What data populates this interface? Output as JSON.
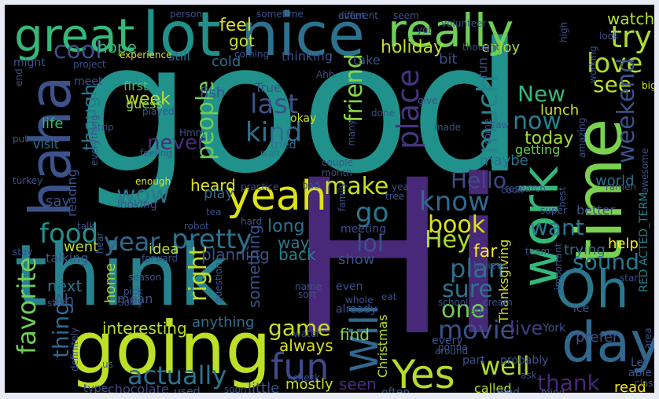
{
  "words": [
    {
      "text": "good",
      "color": "#21918c"
    },
    {
      "text": "Hi",
      "color": "#482878"
    },
    {
      "text": "think",
      "color": "#26828e"
    },
    {
      "text": "going",
      "color": "#bddf26"
    },
    {
      "text": "nice",
      "color": "#2c728e"
    },
    {
      "text": "lot",
      "color": "#21918c"
    },
    {
      "text": "great",
      "color": "#35b779"
    },
    {
      "text": "really",
      "color": "#6ece58"
    },
    {
      "text": "haha",
      "color": "#3b528b"
    },
    {
      "text": "work",
      "color": "#35b779"
    },
    {
      "text": "time",
      "color": "#7ad151"
    },
    {
      "text": "Oh",
      "color": "#2a788e"
    },
    {
      "text": "day",
      "color": "#31688e"
    },
    {
      "text": "yeah",
      "color": "#dde318"
    },
    {
      "text": "fun",
      "color": "#3e4a89"
    },
    {
      "text": "Yes",
      "color": "#b5de2b"
    },
    {
      "text": "try",
      "color": "#addc30"
    },
    {
      "text": "love",
      "color": "#addc30"
    },
    {
      "text": "watch",
      "color": "#b5de2b"
    },
    {
      "text": "cool",
      "color": "#3b528b"
    },
    {
      "text": "hope",
      "color": "#35b779"
    },
    {
      "text": "feel",
      "color": "#dde318"
    },
    {
      "text": "got",
      "color": "#c8e020"
    },
    {
      "text": "holiday",
      "color": "#c2df23"
    },
    {
      "text": "enjoy",
      "color": "#a8db34"
    },
    {
      "text": "see",
      "color": "#bddf26"
    },
    {
      "text": "New",
      "color": "#35b779"
    },
    {
      "text": "now",
      "color": "#26828e"
    },
    {
      "text": "weekend",
      "color": "#3b528b"
    },
    {
      "text": "today",
      "color": "#a0da39"
    },
    {
      "text": "lunch",
      "color": "#d0e11c"
    },
    {
      "text": "getting",
      "color": "#6ece58"
    },
    {
      "text": "last",
      "color": "#3b528b"
    },
    {
      "text": "kind",
      "color": "#2c728e"
    },
    {
      "text": "friend",
      "color": "#86d549"
    },
    {
      "text": "place",
      "color": "#46337e"
    },
    {
      "text": "much",
      "color": "#26828e"
    },
    {
      "text": "people",
      "color": "#6ece58"
    },
    {
      "text": "though",
      "color": "#2a788e"
    },
    {
      "text": "never",
      "color": "#472d7b"
    },
    {
      "text": "week",
      "color": "#bddf26"
    },
    {
      "text": "first",
      "color": "#46c06f"
    },
    {
      "text": "guess",
      "color": "#8fd744"
    },
    {
      "text": "wow",
      "color": "#2a788e"
    },
    {
      "text": "make",
      "color": "#c8e020"
    },
    {
      "text": "go",
      "color": "#2a788e"
    },
    {
      "text": "Hello",
      "color": "#3e4a89"
    },
    {
      "text": "know",
      "color": "#31688e"
    },
    {
      "text": "maybe",
      "color": "#2c728e"
    },
    {
      "text": "book",
      "color": "#dde318"
    },
    {
      "text": "want",
      "color": "#2a788e"
    },
    {
      "text": "better",
      "color": "#3b528b"
    },
    {
      "text": "lol",
      "color": "#3b528b"
    },
    {
      "text": "Hey",
      "color": "#addc30"
    },
    {
      "text": "plan",
      "color": "#2c728e"
    },
    {
      "text": "sure",
      "color": "#2c728e"
    },
    {
      "text": "sound",
      "color": "#2a788e"
    },
    {
      "text": "food",
      "color": "#21918c"
    },
    {
      "text": "year",
      "color": "#31688e"
    },
    {
      "text": "pretty",
      "color": "#2c728e"
    },
    {
      "text": "favorite",
      "color": "#6ece58"
    },
    {
      "text": "thing",
      "color": "#31688e"
    },
    {
      "text": "right",
      "color": "#c2df23"
    },
    {
      "text": "one",
      "color": "#6ece58"
    },
    {
      "text": "movie",
      "color": "#3b528b"
    },
    {
      "text": "Will",
      "color": "#31688e"
    },
    {
      "text": "game",
      "color": "#c8e020"
    },
    {
      "text": "well",
      "color": "#addc30"
    },
    {
      "text": "thank",
      "color": "#482878"
    },
    {
      "text": "live",
      "color": "#433e85"
    },
    {
      "text": "actually",
      "color": "#2c728e"
    },
    {
      "text": "interesting",
      "color": "#b5de2b"
    },
    {
      "text": "chocolate",
      "color": "#3e4a89"
    },
    {
      "text": "little",
      "color": "#3b528b"
    },
    {
      "text": "seen",
      "color": "#472d7b"
    },
    {
      "text": "called",
      "color": "#b5de2b"
    },
    {
      "text": "mostly",
      "color": "#c8e020"
    },
    {
      "text": "always",
      "color": "#dde318"
    },
    {
      "text": "find",
      "color": "#86d549"
    },
    {
      "text": "something",
      "color": "#3b528b"
    },
    {
      "text": "Christmas",
      "color": "#b5de2b"
    },
    {
      "text": "Thanksgiving",
      "color": "#d0e11c"
    },
    {
      "text": "RED ACTED_TERM",
      "color": "#26828e"
    },
    {
      "text": "read",
      "color": "#fde725"
    },
    {
      "text": "prefer",
      "color": "#3b528b"
    },
    {
      "text": "help",
      "color": "#fde725"
    },
    {
      "text": "trying",
      "color": "#2c728e"
    },
    {
      "text": "world",
      "color": "#2c728e"
    },
    {
      "text": "heard",
      "color": "#dde318"
    },
    {
      "text": "play",
      "color": "#31688e"
    },
    {
      "text": "long",
      "color": "#2c728e"
    },
    {
      "text": "way",
      "color": "#2a788e"
    },
    {
      "text": "back",
      "color": "#26828e"
    },
    {
      "text": "planning",
      "color": "#3b528b"
    },
    {
      "text": "idea",
      "color": "#bddf26"
    },
    {
      "text": "show",
      "color": "#3b528b"
    },
    {
      "text": "far",
      "color": "#fde725"
    },
    {
      "text": "next",
      "color": "#2c728e"
    },
    {
      "text": "Ah",
      "color": "#3b528b"
    },
    {
      "text": "home",
      "color": "#a0da39"
    },
    {
      "text": "mean",
      "color": "#3b528b"
    },
    {
      "text": "anything",
      "color": "#2c728e"
    },
    {
      "text": "say",
      "color": "#3b528b"
    },
    {
      "text": "reading",
      "color": "#3b528b"
    },
    {
      "text": "went",
      "color": "#bddf26"
    },
    {
      "text": "talking",
      "color": "#3b528b"
    },
    {
      "text": "life",
      "color": "#35b779"
    },
    {
      "text": "visit",
      "color": "#2c728e"
    },
    {
      "text": "fish",
      "color": "#3b528b"
    },
    {
      "text": "cold",
      "color": "#2c728e"
    },
    {
      "text": "still",
      "color": "#2c728e"
    },
    {
      "text": "True",
      "color": "#3b528b"
    },
    {
      "text": "okay",
      "color": "#c8e020"
    },
    {
      "text": "tried",
      "color": "#2c728e"
    },
    {
      "text": "wait",
      "color": "#2c728e"
    },
    {
      "text": "thinking",
      "color": "#3b528b"
    },
    {
      "text": "take",
      "color": "#3b528b"
    },
    {
      "text": "bit",
      "color": "#3b528b"
    },
    {
      "text": "run",
      "color": "#3b528b"
    },
    {
      "text": "meet",
      "color": "#3b528b"
    },
    {
      "text": "might",
      "color": "#3b528b"
    },
    {
      "text": "project",
      "color": "#3b528b"
    },
    {
      "text": "experience",
      "color": "#dde318"
    },
    {
      "text": "person",
      "color": "#3b528b"
    },
    {
      "text": "sometime",
      "color": "#3b528b"
    },
    {
      "text": "event",
      "color": "#3b528b"
    },
    {
      "text": "different",
      "color": "#3b528b"
    },
    {
      "text": "seem",
      "color": "#3b528b"
    },
    {
      "text": "volunteer",
      "color": "#3b528b"
    },
    {
      "text": "awesome",
      "color": "#3b528b"
    },
    {
      "text": "working",
      "color": "#3b528b"
    },
    {
      "text": "thought",
      "color": "#3b528b"
    },
    {
      "text": "look",
      "color": "#3b528b"
    },
    {
      "text": "high",
      "color": "#3b528b"
    },
    {
      "text": "coming",
      "color": "#3b528b"
    },
    {
      "text": "Ahh",
      "color": "#3b528b"
    },
    {
      "text": "yet",
      "color": "#3b528b"
    },
    {
      "text": "big",
      "color": "#dde318"
    },
    {
      "text": "end",
      "color": "#3b528b"
    },
    {
      "text": "put",
      "color": "#3b528b"
    },
    {
      "text": "turkey",
      "color": "#3b528b"
    },
    {
      "text": "stay",
      "color": "#3b528b"
    },
    {
      "text": "everything",
      "color": "#3b528b"
    },
    {
      "text": "feeling",
      "color": "#3b528b"
    },
    {
      "text": "enough",
      "color": "#dde318"
    },
    {
      "text": "practice",
      "color": "#3b528b"
    },
    {
      "text": "month",
      "color": "#3b528b"
    },
    {
      "text": "couple",
      "color": "#3b528b"
    },
    {
      "text": "bad",
      "color": "#3b528b"
    },
    {
      "text": "tea",
      "color": "#3b528b"
    },
    {
      "text": "hard",
      "color": "#3b528b"
    },
    {
      "text": "robot",
      "color": "#3b528b"
    },
    {
      "text": "talk",
      "color": "#3b528b"
    },
    {
      "text": "looking",
      "color": "#3b528b"
    },
    {
      "text": "tree",
      "color": "#3b528b"
    },
    {
      "text": "cook",
      "color": "#3b528b"
    },
    {
      "text": "research",
      "color": "#3b528b"
    },
    {
      "text": "ramen",
      "color": "#3b528b"
    },
    {
      "text": "super",
      "color": "#3b528b"
    },
    {
      "text": "best",
      "color": "#3b528b"
    },
    {
      "text": "meeting",
      "color": "#3b528b"
    },
    {
      "text": "family",
      "color": "#3b528b"
    },
    {
      "text": "yea",
      "color": "#3b528b"
    },
    {
      "text": "done",
      "color": "#3b528b"
    },
    {
      "text": "made",
      "color": "#3b528b"
    },
    {
      "text": "around",
      "color": "#3b528b"
    },
    {
      "text": "many",
      "color": "#3b528b"
    },
    {
      "text": "check",
      "color": "#3b528b"
    },
    {
      "text": "played",
      "color": "#3b528b"
    },
    {
      "text": "trip",
      "color": "#3b528b"
    },
    {
      "text": "give",
      "color": "#3b528b"
    },
    {
      "text": "saw",
      "color": "#3b528b"
    },
    {
      "text": "come",
      "color": "#3b528b"
    },
    {
      "text": "Hmm",
      "color": "#3b528b"
    },
    {
      "text": "forward",
      "color": "#3b528b"
    },
    {
      "text": "hear",
      "color": "#3b528b"
    },
    {
      "text": "pick",
      "color": "#3b528b"
    },
    {
      "text": "Sorry",
      "color": "#3b528b"
    },
    {
      "text": "stuff",
      "color": "#3b528b"
    },
    {
      "text": "season",
      "color": "#3b528b"
    },
    {
      "text": "question",
      "color": "#3b528b"
    },
    {
      "text": "name",
      "color": "#3b528b"
    },
    {
      "text": "sort",
      "color": "#3b528b"
    },
    {
      "text": "even",
      "color": "#3b528b"
    },
    {
      "text": "whole",
      "color": "#3b528b"
    },
    {
      "text": "believe",
      "color": "#3b528b"
    },
    {
      "text": "eat",
      "color": "#3b528b"
    },
    {
      "text": "school",
      "color": "#3b528b"
    },
    {
      "text": "cream",
      "color": "#3b528b"
    },
    {
      "text": "ago",
      "color": "#3b528b"
    },
    {
      "text": "ice",
      "color": "#3b528b"
    },
    {
      "text": "start",
      "color": "#3b528b"
    },
    {
      "text": "important",
      "color": "#3b528b"
    },
    {
      "text": "amazing",
      "color": "#3b528b"
    },
    {
      "text": "water",
      "color": "#3b528b"
    },
    {
      "text": "York",
      "color": "#3b528b"
    },
    {
      "text": "ask",
      "color": "#3b528b"
    },
    {
      "text": "mind",
      "color": "#3b528b"
    },
    {
      "text": "need",
      "color": "#3b528b"
    },
    {
      "text": "often",
      "color": "#3b528b"
    },
    {
      "text": "part",
      "color": "#3b528b"
    },
    {
      "text": "probably",
      "color": "#3b528b"
    },
    {
      "text": "every",
      "color": "#3b528b"
    },
    {
      "text": "gonna",
      "color": "#3b528b"
    },
    {
      "text": "already",
      "color": "#3b528b"
    },
    {
      "text": "definitely",
      "color": "#3b528b"
    },
    {
      "text": "type",
      "color": "#3b528b"
    },
    {
      "text": "us",
      "color": "#3b528b"
    },
    {
      "text": "soon",
      "color": "#3b528b"
    },
    {
      "text": "used",
      "color": "#3b528b"
    },
    {
      "text": "area",
      "color": "#3b528b"
    },
    {
      "text": "Let",
      "color": "#3b528b"
    },
    {
      "text": "able",
      "color": "#3b528b"
    },
    {
      "text": "class",
      "color": "#3b528b"
    },
    {
      "text": "team",
      "color": "#3b528b"
    }
  ]
}
